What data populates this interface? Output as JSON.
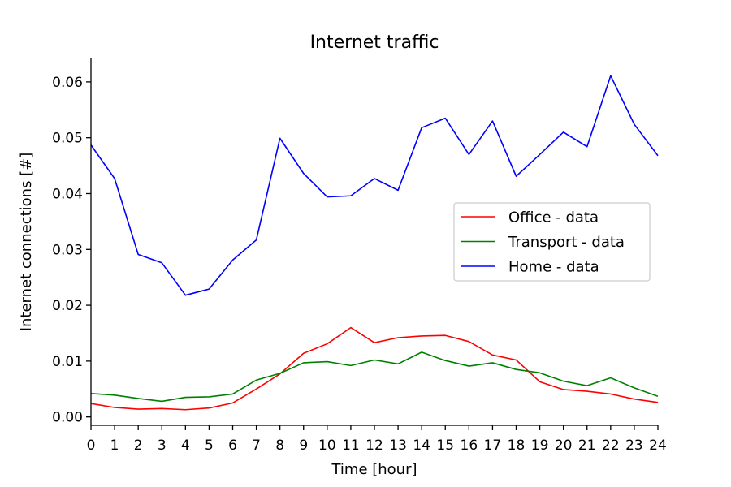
{
  "chart_data": {
    "type": "line",
    "title": "Internet traffic",
    "xlabel": "Time [hour]",
    "ylabel": "Internet connections [#]",
    "xlim": [
      0,
      24
    ],
    "ylim": [
      -0.0015,
      0.0642
    ],
    "grid": false,
    "legend_position": "center-right",
    "x": [
      0,
      1,
      2,
      3,
      4,
      5,
      6,
      7,
      8,
      9,
      10,
      11,
      12,
      13,
      14,
      15,
      16,
      17,
      18,
      19,
      20,
      21,
      22,
      23,
      24
    ],
    "x_ticks": [
      "0",
      "1",
      "2",
      "3",
      "4",
      "5",
      "6",
      "7",
      "8",
      "9",
      "10",
      "11",
      "12",
      "13",
      "14",
      "15",
      "16",
      "17",
      "18",
      "19",
      "20",
      "21",
      "22",
      "23",
      "24"
    ],
    "y_ticks": [
      {
        "value": 0.0,
        "label": "0.00"
      },
      {
        "value": 0.01,
        "label": "0.01"
      },
      {
        "value": 0.02,
        "label": "0.02"
      },
      {
        "value": 0.03,
        "label": "0.03"
      },
      {
        "value": 0.04,
        "label": "0.04"
      },
      {
        "value": 0.05,
        "label": "0.05"
      },
      {
        "value": 0.06,
        "label": "0.06"
      }
    ],
    "series": [
      {
        "name": "Office - data",
        "color": "#ff0000",
        "values": [
          0.0024,
          0.0017,
          0.0014,
          0.0015,
          0.0013,
          0.0016,
          0.0025,
          0.005,
          0.0077,
          0.0114,
          0.0131,
          0.016,
          0.0133,
          0.0142,
          0.0145,
          0.0146,
          0.0135,
          0.0111,
          0.0102,
          0.0063,
          0.0049,
          0.0046,
          0.0041,
          0.0032,
          0.0026
        ]
      },
      {
        "name": "Transport - data",
        "color": "#008000",
        "values": [
          0.0042,
          0.0039,
          0.0033,
          0.0028,
          0.0035,
          0.0036,
          0.0041,
          0.0066,
          0.0078,
          0.0097,
          0.0099,
          0.0092,
          0.0102,
          0.0095,
          0.0116,
          0.0101,
          0.0091,
          0.0097,
          0.0085,
          0.0079,
          0.0064,
          0.0056,
          0.007,
          0.0052,
          0.0037
        ]
      },
      {
        "name": "Home - data",
        "color": "#0000ff",
        "values": [
          0.0487,
          0.0427,
          0.0291,
          0.0276,
          0.0218,
          0.0229,
          0.0281,
          0.0317,
          0.0499,
          0.0436,
          0.0394,
          0.0396,
          0.0427,
          0.0406,
          0.0518,
          0.0535,
          0.047,
          0.053,
          0.0431,
          0.047,
          0.051,
          0.0484,
          0.0611,
          0.0524,
          0.0468
        ]
      }
    ]
  }
}
